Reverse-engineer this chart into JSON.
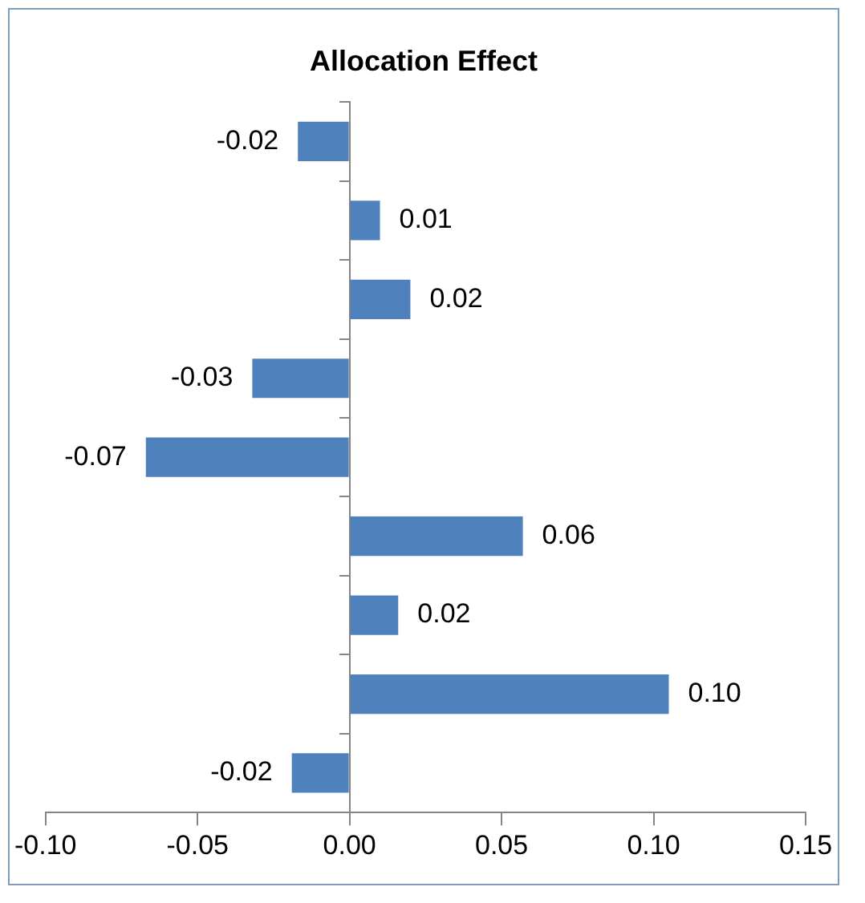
{
  "chart_data": {
    "type": "bar",
    "orientation": "horizontal",
    "title": "Allocation Effect",
    "categories": [
      null,
      null,
      null,
      null,
      null,
      null,
      null,
      null,
      null
    ],
    "values": [
      -0.017,
      0.01,
      0.02,
      -0.032,
      -0.067,
      0.057,
      0.016,
      0.105,
      -0.019
    ],
    "value_labels": [
      "-0.02",
      "0.01",
      "0.02",
      "-0.03",
      "-0.07",
      "0.06",
      "0.02",
      "0.10",
      "-0.02"
    ],
    "color": "#4f81bd",
    "xlim": [
      -0.1,
      0.15
    ],
    "xticks": [
      {
        "value": -0.1,
        "label": "-0.10"
      },
      {
        "value": -0.05,
        "label": "-0.05"
      },
      {
        "value": 0,
        "label": "0.00"
      },
      {
        "value": 0.05,
        "label": "0.05"
      },
      {
        "value": 0.1,
        "label": "0.10"
      },
      {
        "value": 0.15,
        "label": "0.15"
      }
    ],
    "legend": false
  }
}
